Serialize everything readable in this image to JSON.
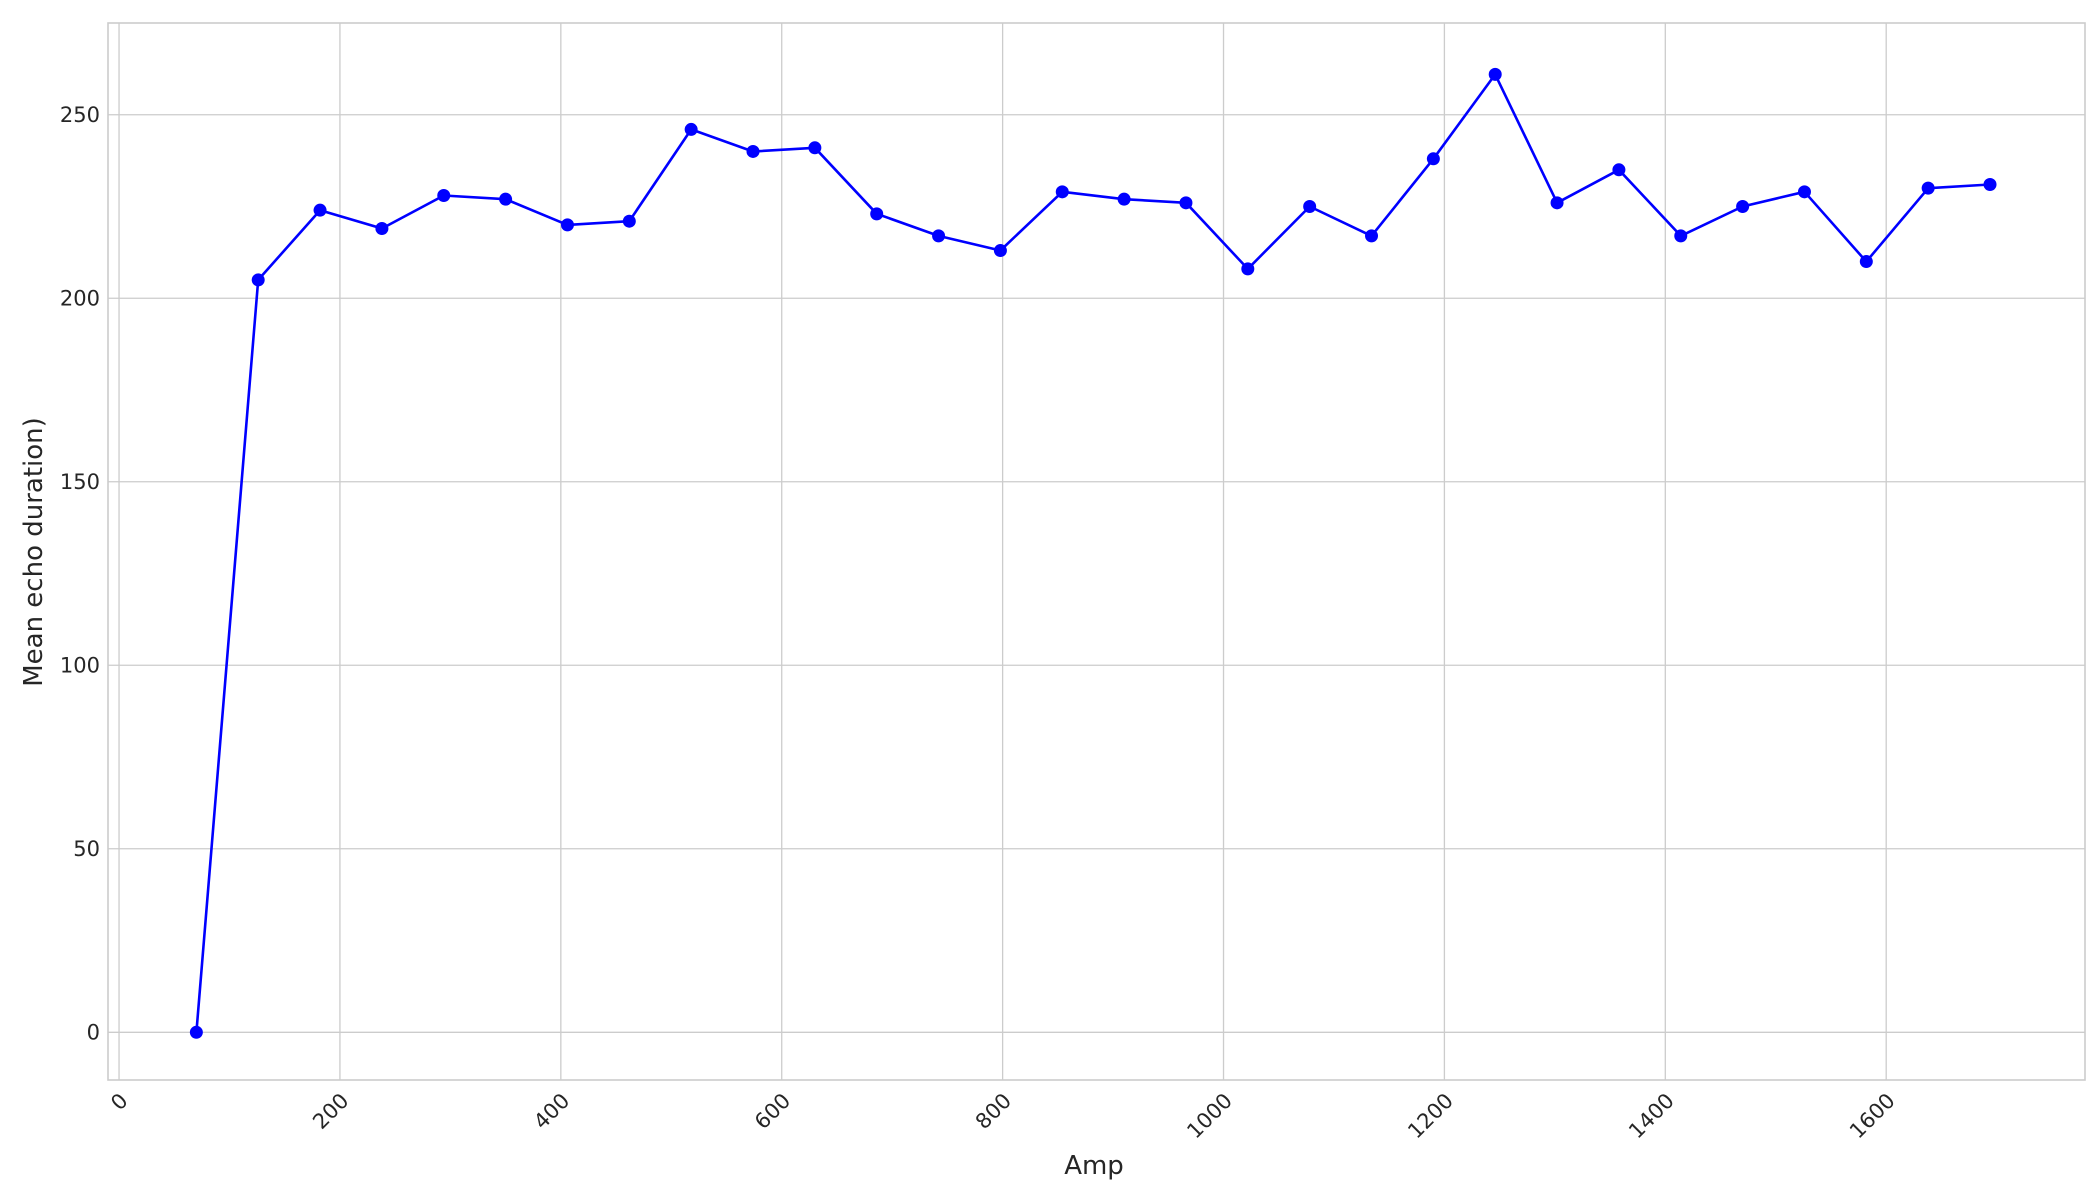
{
  "chart_data": {
    "type": "line",
    "title": "",
    "xlabel": "Amp",
    "ylabel": "Mean echo duration)",
    "xlim": [
      -10,
      1780
    ],
    "ylim": [
      -13,
      275
    ],
    "x_ticks": [
      0,
      200,
      400,
      600,
      800,
      1000,
      1200,
      1400,
      1600
    ],
    "y_ticks": [
      0,
      50,
      100,
      150,
      200,
      250
    ],
    "grid": true,
    "colors": {
      "series": "#0000ff",
      "grid": "#cccccc",
      "text": "#262626"
    },
    "series": [
      {
        "x": [
          70,
          126,
          182,
          238,
          294,
          350,
          406,
          462,
          518,
          574,
          630,
          686,
          742,
          798,
          854,
          910,
          966,
          1022,
          1078,
          1134,
          1190,
          1246,
          1302,
          1358,
          1414,
          1470,
          1526,
          1582,
          1638,
          1694
        ],
        "values": [
          0,
          205,
          224,
          219,
          228,
          227,
          220,
          221,
          246,
          240,
          241,
          223,
          217,
          213,
          229,
          227,
          226,
          208,
          225,
          217,
          238,
          261,
          226,
          235,
          217,
          225,
          229,
          210,
          230,
          231
        ],
        "marker": "circle"
      }
    ]
  }
}
